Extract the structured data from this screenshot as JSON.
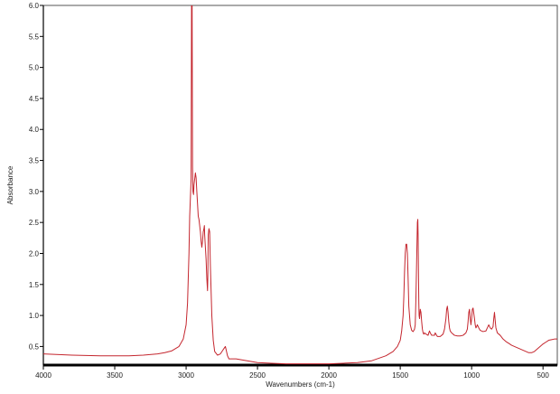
{
  "chart_data": {
    "type": "line",
    "title": "",
    "xlabel": "Wavenumbers (cm-1)",
    "ylabel": "Absorbance",
    "xlim": [
      4000,
      400
    ],
    "ylim": [
      0.2,
      6.0
    ],
    "x_reversed": true,
    "grid": false,
    "legend": "none",
    "xticks": [
      4000,
      3500,
      3000,
      2500,
      2000,
      1500,
      1000,
      500
    ],
    "xtick_labels": [
      "4000",
      "3500",
      "3000",
      "2500",
      "2000",
      "1500",
      "1000",
      "500"
    ],
    "yticks": [
      0.5,
      1.0,
      1.5,
      2.0,
      2.5,
      3.0,
      3.5,
      4.0,
      4.5,
      5.0,
      5.5,
      6.0
    ],
    "ytick_labels": [
      "0.5",
      "1.0",
      "1.5",
      "2.0",
      "2.5",
      "3.0",
      "3.5",
      "4.0",
      "4.5",
      "5.0",
      "5.5",
      "6.0"
    ],
    "colors": {
      "line": "#c4262e",
      "frame": "#555555",
      "axis": "#000000"
    },
    "series": [
      {
        "x": [
          4000,
          3800,
          3600,
          3400,
          3300,
          3200,
          3150,
          3100,
          3050,
          3020,
          3000,
          2990,
          2980,
          2975,
          2970,
          2965,
          2962,
          2958,
          2955,
          2952,
          2948,
          2945,
          2940,
          2935,
          2930,
          2925,
          2920,
          2915,
          2910,
          2905,
          2900,
          2895,
          2890,
          2885,
          2880,
          2875,
          2872,
          2870,
          2865,
          2860,
          2855,
          2850,
          2848,
          2845,
          2840,
          2835,
          2830,
          2820,
          2810,
          2800,
          2780,
          2760,
          2740,
          2725,
          2710,
          2700,
          2650,
          2600,
          2500,
          2400,
          2300,
          2200,
          2100,
          2000,
          1900,
          1800,
          1700,
          1600,
          1550,
          1520,
          1500,
          1490,
          1480,
          1475,
          1470,
          1465,
          1460,
          1455,
          1450,
          1445,
          1440,
          1430,
          1420,
          1410,
          1400,
          1395,
          1390,
          1385,
          1380,
          1377,
          1375,
          1372,
          1370,
          1368,
          1365,
          1360,
          1355,
          1350,
          1345,
          1340,
          1335,
          1330,
          1320,
          1305,
          1300,
          1295,
          1290,
          1280,
          1260,
          1255,
          1250,
          1240,
          1220,
          1200,
          1190,
          1180,
          1175,
          1170,
          1165,
          1160,
          1155,
          1150,
          1140,
          1120,
          1100,
          1080,
          1060,
          1050,
          1040,
          1030,
          1025,
          1020,
          1015,
          1010,
          1005,
          1000,
          995,
          990,
          980,
          975,
          970,
          965,
          960,
          950,
          940,
          920,
          900,
          890,
          880,
          870,
          860,
          850,
          845,
          840,
          835,
          830,
          820,
          810,
          800,
          780,
          760,
          740,
          720,
          700,
          680,
          660,
          640,
          620,
          600,
          580,
          560,
          540,
          520,
          500,
          480,
          460,
          440,
          420,
          400
        ],
        "y": [
          0.38,
          0.36,
          0.35,
          0.35,
          0.36,
          0.38,
          0.4,
          0.43,
          0.5,
          0.62,
          0.85,
          1.2,
          2.0,
          2.6,
          2.9,
          3.2,
          6.0,
          6.0,
          3.4,
          3.0,
          2.95,
          3.1,
          3.2,
          3.3,
          3.22,
          3.0,
          2.8,
          2.6,
          2.55,
          2.45,
          2.35,
          2.2,
          2.1,
          2.2,
          2.35,
          2.4,
          2.45,
          2.3,
          2.1,
          1.9,
          1.6,
          1.4,
          1.6,
          2.3,
          2.4,
          2.35,
          1.8,
          1.0,
          0.6,
          0.42,
          0.36,
          0.38,
          0.45,
          0.5,
          0.35,
          0.3,
          0.3,
          0.28,
          0.24,
          0.23,
          0.22,
          0.22,
          0.22,
          0.22,
          0.23,
          0.24,
          0.27,
          0.35,
          0.42,
          0.5,
          0.6,
          0.75,
          1.0,
          1.3,
          1.7,
          2.0,
          2.15,
          2.15,
          2.0,
          1.6,
          1.15,
          0.85,
          0.76,
          0.74,
          0.78,
          0.85,
          1.3,
          1.9,
          2.5,
          2.55,
          2.3,
          1.6,
          1.2,
          1.0,
          0.95,
          1.1,
          1.05,
          0.9,
          0.78,
          0.72,
          0.7,
          0.72,
          0.7,
          0.68,
          0.72,
          0.75,
          0.72,
          0.68,
          0.68,
          0.72,
          0.7,
          0.66,
          0.66,
          0.7,
          0.78,
          0.95,
          1.1,
          1.15,
          1.05,
          0.9,
          0.8,
          0.75,
          0.72,
          0.68,
          0.67,
          0.67,
          0.68,
          0.7,
          0.72,
          0.78,
          0.9,
          1.05,
          1.1,
          0.95,
          0.85,
          0.95,
          1.1,
          1.12,
          0.95,
          0.85,
          0.8,
          0.82,
          0.85,
          0.8,
          0.76,
          0.74,
          0.75,
          0.8,
          0.85,
          0.8,
          0.78,
          0.82,
          0.95,
          1.05,
          0.92,
          0.8,
          0.72,
          0.7,
          0.68,
          0.62,
          0.58,
          0.55,
          0.52,
          0.5,
          0.48,
          0.46,
          0.44,
          0.42,
          0.4,
          0.4,
          0.42,
          0.46,
          0.5,
          0.54,
          0.57,
          0.6,
          0.61,
          0.62,
          0.62
        ]
      }
    ]
  }
}
